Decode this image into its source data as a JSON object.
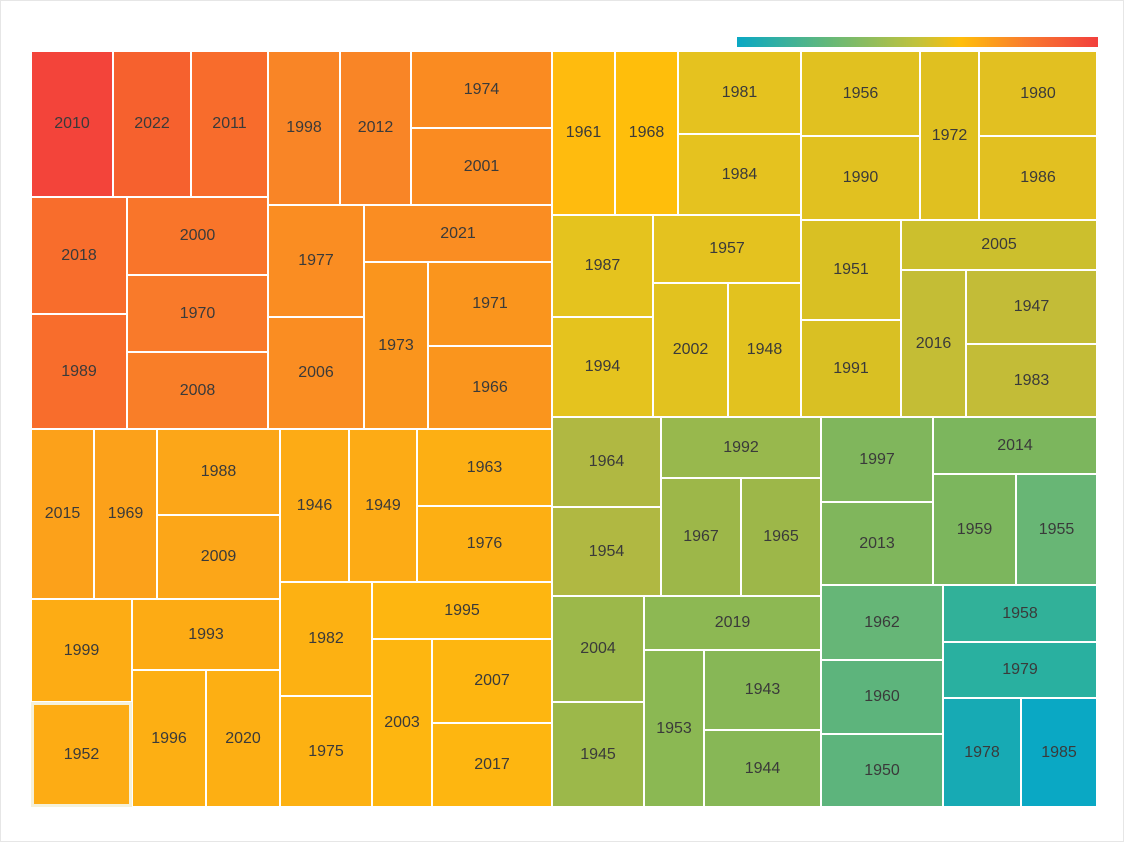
{
  "chart_data": {
    "type": "treemap",
    "title": "",
    "legend": {
      "type": "color-gradient",
      "placement": "top-right"
    },
    "selected": "1952",
    "items": [
      {
        "label": "2010",
        "color": "#f3443a"
      },
      {
        "label": "2022",
        "color": "#f6612e"
      },
      {
        "label": "2011",
        "color": "#f86c2c"
      },
      {
        "label": "1998",
        "color": "#f98526"
      },
      {
        "label": "2012",
        "color": "#f98526"
      },
      {
        "label": "1974",
        "color": "#fa8b21"
      },
      {
        "label": "2001",
        "color": "#fa8b21"
      },
      {
        "label": "2018",
        "color": "#f86d2c"
      },
      {
        "label": "2000",
        "color": "#f9752a"
      },
      {
        "label": "1970",
        "color": "#f97a2a"
      },
      {
        "label": "2008",
        "color": "#f97e28"
      },
      {
        "label": "1989",
        "color": "#f86d2c"
      },
      {
        "label": "1977",
        "color": "#fa8d22"
      },
      {
        "label": "2006",
        "color": "#fa8d22"
      },
      {
        "label": "2021",
        "color": "#fa8d22"
      },
      {
        "label": "1973",
        "color": "#fa951d"
      },
      {
        "label": "1971",
        "color": "#fa951d"
      },
      {
        "label": "1966",
        "color": "#fa951d"
      },
      {
        "label": "1961",
        "color": "#ffbb0e"
      },
      {
        "label": "1968",
        "color": "#ffbe0b"
      },
      {
        "label": "1981",
        "color": "#e5c21f"
      },
      {
        "label": "1984",
        "color": "#e5c21f"
      },
      {
        "label": "1956",
        "color": "#e1c120"
      },
      {
        "label": "1990",
        "color": "#e1c120"
      },
      {
        "label": "1972",
        "color": "#e0c020"
      },
      {
        "label": "1980",
        "color": "#e2c021"
      },
      {
        "label": "1986",
        "color": "#e2c021"
      },
      {
        "label": "1987",
        "color": "#e5c31e"
      },
      {
        "label": "1957",
        "color": "#e4c21f"
      },
      {
        "label": "1994",
        "color": "#e5c31e"
      },
      {
        "label": "2002",
        "color": "#e2c21f"
      },
      {
        "label": "1948",
        "color": "#e2c21f"
      },
      {
        "label": "1951",
        "color": "#d9c023"
      },
      {
        "label": "2005",
        "color": "#ccbf2d"
      },
      {
        "label": "1991",
        "color": "#d9c023"
      },
      {
        "label": "2016",
        "color": "#c4bd35"
      },
      {
        "label": "1947",
        "color": "#c3bc37"
      },
      {
        "label": "1983",
        "color": "#c3bc37"
      },
      {
        "label": "2015",
        "color": "#fca11a"
      },
      {
        "label": "1969",
        "color": "#fca11a"
      },
      {
        "label": "1988",
        "color": "#fca618"
      },
      {
        "label": "2009",
        "color": "#fca618"
      },
      {
        "label": "1946",
        "color": "#fdab15"
      },
      {
        "label": "1949",
        "color": "#fdab15"
      },
      {
        "label": "1963",
        "color": "#fdaf13"
      },
      {
        "label": "1976",
        "color": "#fdaf13"
      },
      {
        "label": "1999",
        "color": "#fdac14"
      },
      {
        "label": "1993",
        "color": "#fdab14"
      },
      {
        "label": "1952",
        "color": "#fdac14"
      },
      {
        "label": "1996",
        "color": "#fdaf13"
      },
      {
        "label": "2020",
        "color": "#fdaf13"
      },
      {
        "label": "1982",
        "color": "#fdb112"
      },
      {
        "label": "1975",
        "color": "#fdb112"
      },
      {
        "label": "1995",
        "color": "#feb610"
      },
      {
        "label": "2003",
        "color": "#feb610"
      },
      {
        "label": "2007",
        "color": "#feb610"
      },
      {
        "label": "2017",
        "color": "#feb610"
      },
      {
        "label": "1964",
        "color": "#b0b842"
      },
      {
        "label": "1954",
        "color": "#b0b842"
      },
      {
        "label": "1992",
        "color": "#98b84d"
      },
      {
        "label": "1967",
        "color": "#9db749"
      },
      {
        "label": "1965",
        "color": "#9db749"
      },
      {
        "label": "1997",
        "color": "#80b65c"
      },
      {
        "label": "2013",
        "color": "#80b65c"
      },
      {
        "label": "2014",
        "color": "#7cb65d"
      },
      {
        "label": "1959",
        "color": "#7cb65d"
      },
      {
        "label": "1955",
        "color": "#68b675"
      },
      {
        "label": "2004",
        "color": "#9cb84a"
      },
      {
        "label": "1945",
        "color": "#9cb84a"
      },
      {
        "label": "2019",
        "color": "#8db853"
      },
      {
        "label": "1953",
        "color": "#8bb853"
      },
      {
        "label": "1943",
        "color": "#87b756"
      },
      {
        "label": "1944",
        "color": "#87b756"
      },
      {
        "label": "1962",
        "color": "#66b677"
      },
      {
        "label": "1960",
        "color": "#5db47c"
      },
      {
        "label": "1950",
        "color": "#5db47c"
      },
      {
        "label": "1958",
        "color": "#31b199"
      },
      {
        "label": "1979",
        "color": "#29b0a0"
      },
      {
        "label": "1978",
        "color": "#17aab4"
      },
      {
        "label": "1985",
        "color": "#0aa8c4"
      }
    ]
  }
}
